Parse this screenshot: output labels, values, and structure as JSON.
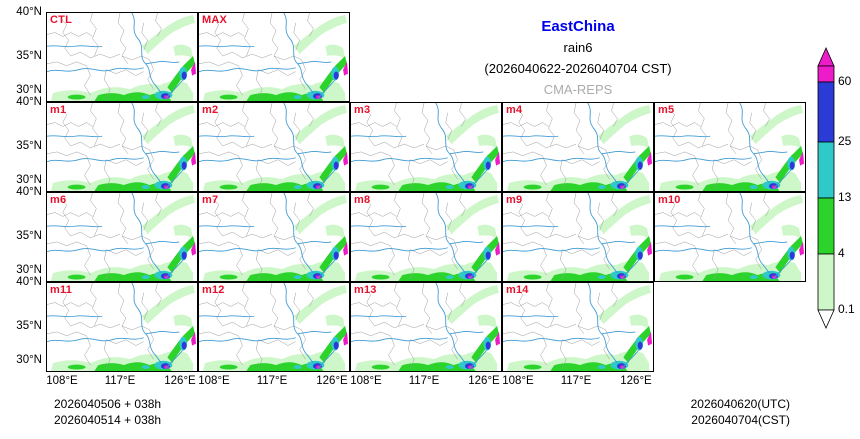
{
  "title": {
    "region": "EastChina",
    "variable": "rain6",
    "period": "(2026040622-2026040704 CST)",
    "model": "CMA-REPS"
  },
  "panel_labels": [
    "CTL",
    "MAX",
    "m1",
    "m2",
    "m3",
    "m4",
    "m5",
    "m6",
    "m7",
    "m8",
    "m9",
    "m10",
    "m11",
    "m12",
    "m13",
    "m14"
  ],
  "axes": {
    "y_ticks": [
      "40°N",
      "35°N",
      "30°N"
    ],
    "x_ticks": [
      "108°E",
      "117°E",
      "126°E"
    ]
  },
  "colorbar": {
    "levels": [
      "60",
      "25",
      "13",
      "4",
      "0.1"
    ],
    "segment_colors_top_to_bottom": [
      "#EE1CC8",
      "#2B3BD6",
      "#30C9C9",
      "#2BD32B",
      "#CDF7C8"
    ],
    "below_min_color": "#FFFFFF"
  },
  "footer": {
    "left_lines": [
      "2026040506 + 038h",
      "2026040514 + 038h"
    ],
    "right_lines": [
      "2026040620(UTC)",
      "2026040704(CST)"
    ]
  },
  "colors": {
    "panel_label": "#E8112D",
    "title_region": "#0000EE",
    "title_model": "#ABABAB",
    "province_line": "#9A9A9A",
    "river_line": "#3E9BD5",
    "panel_border": "#000000"
  }
}
